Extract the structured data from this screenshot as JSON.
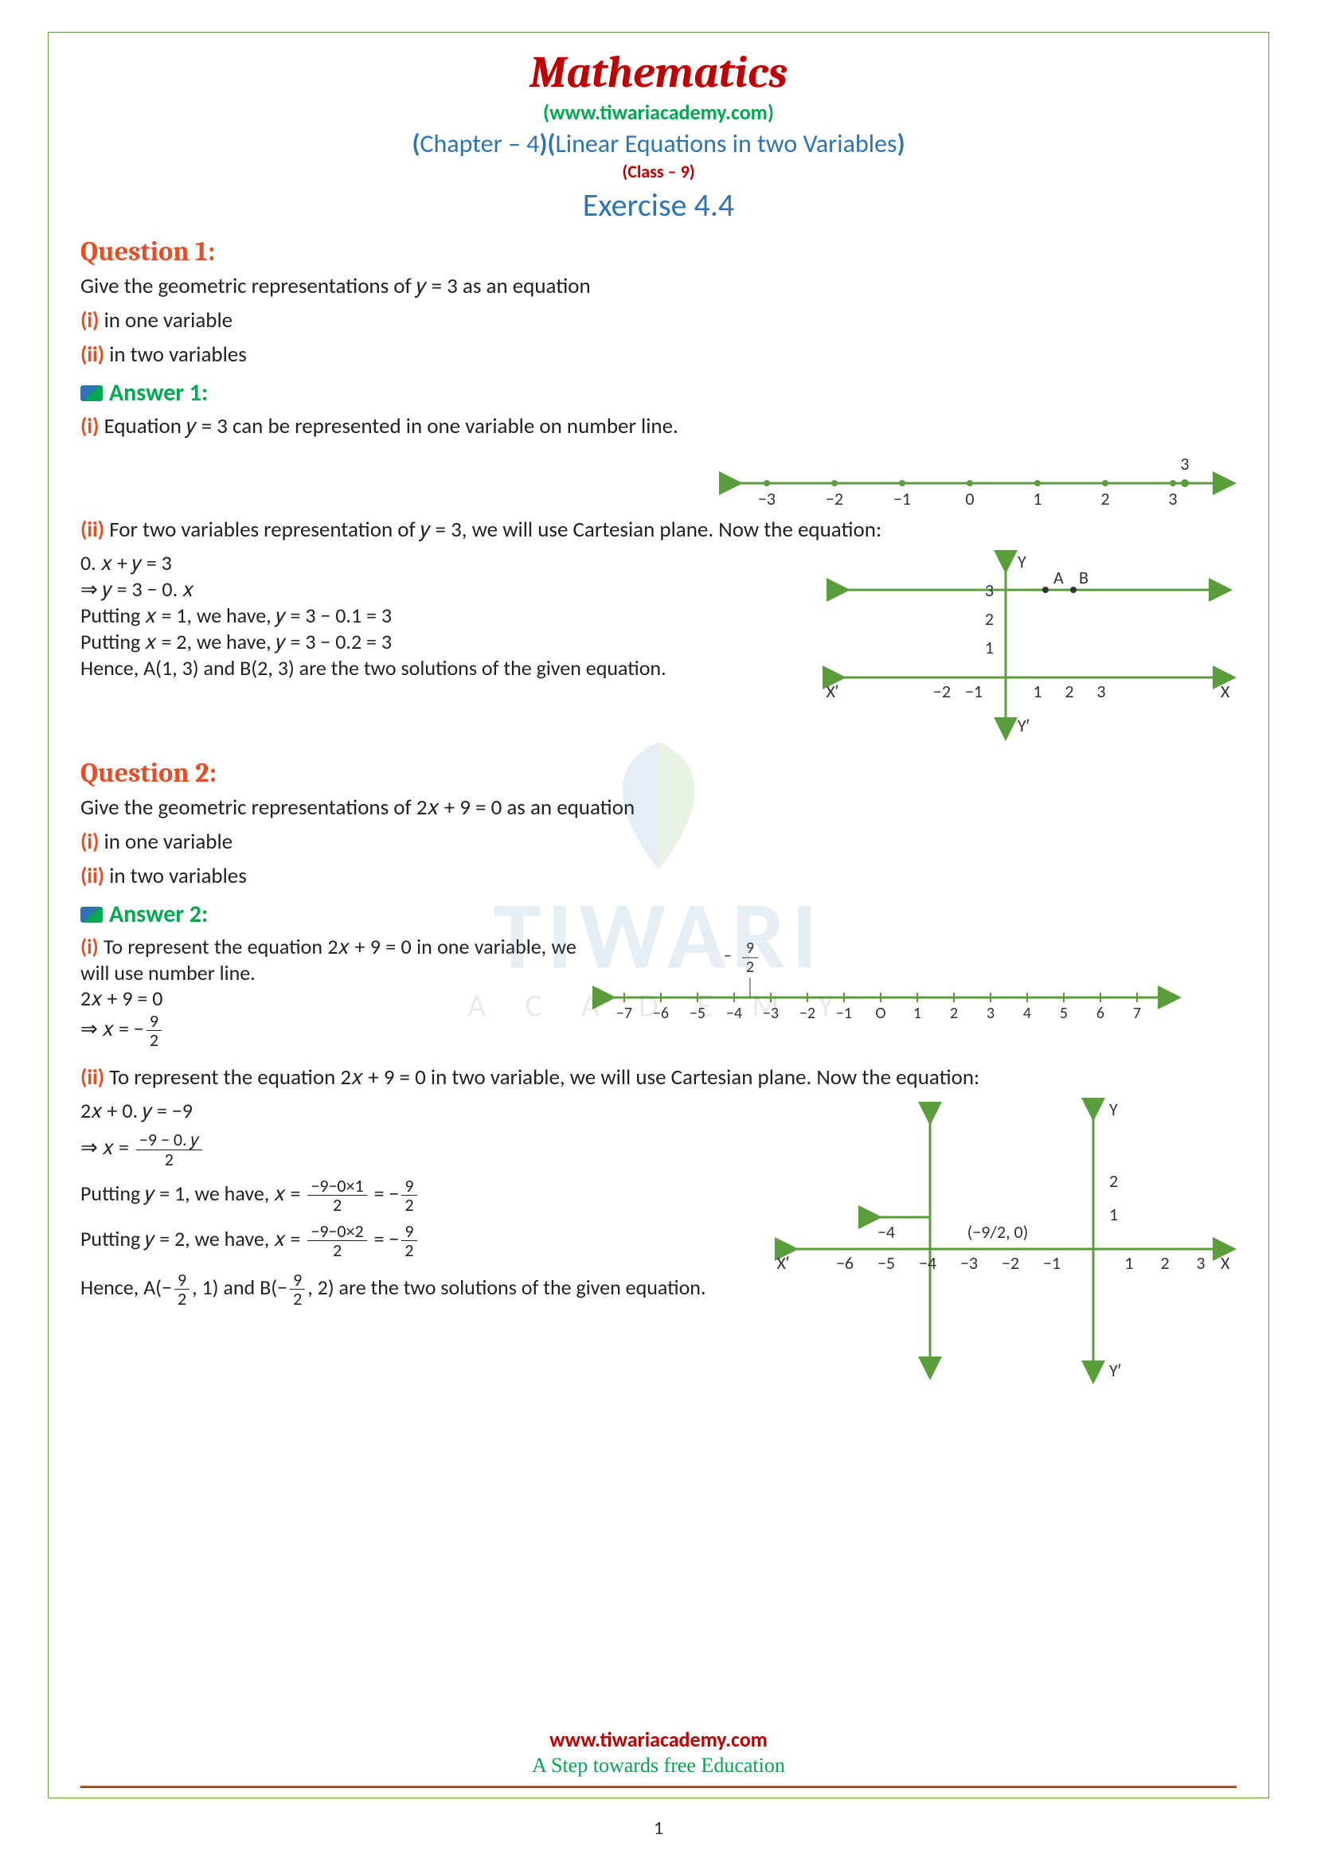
{
  "header": {
    "title": "Mathematics",
    "url_prefix": "(",
    "url": "www.tiwariacademy.com",
    "url_suffix": ")",
    "chapter_open": "(",
    "chapter_a": "Chapter – 4",
    "chapter_mid": ")(",
    "chapter_b": "Linear Equations in two Variables",
    "chapter_close": ")",
    "class_line": "(Class – 9)",
    "exercise": "Exercise 4.4"
  },
  "q1": {
    "label": "Question 1:",
    "prompt": "Give the geometric representations of 𝑦 = 3 as an equation",
    "pi": "(i)",
    "pi_text": " in one variable",
    "pii": "(ii)",
    "pii_text": " in two variables",
    "answer_label": "Answer 1:",
    "ai": "(i)",
    "ai_text": "  Equation 𝑦 = 3 can be represented in one variable on number line.",
    "aii": "(ii)",
    "aii_text": "   For two variables representation of 𝑦 = 3, we will use Cartesian plane. Now the equation:",
    "eq1": "0. 𝑥 + 𝑦 = 3",
    "eq2": "⇒ 𝑦 = 3 − 0. 𝑥",
    "put1": "Putting 𝑥 = 1, we have, 𝑦 = 3 − 0.1 = 3",
    "put2": "Putting 𝑥 = 2, we have, 𝑦 = 3 − 0.2 = 3",
    "concl": "Hence, A(1, 3) and B(2, 3) are the two solutions of the given equation.",
    "numberline": {
      "ticks": [
        "−3",
        "−2",
        "−1",
        "0",
        "1",
        "2",
        "3"
      ],
      "mark_label": "3",
      "color": "#5a9e3c"
    },
    "cartesian": {
      "x_ticks_neg": [
        "−2",
        "−1"
      ],
      "x_ticks_pos": [
        "1",
        "2",
        "3"
      ],
      "y_ticks": [
        "1",
        "2",
        "3"
      ],
      "labels": {
        "X": "X",
        "Xp": "X′",
        "Y": "Y",
        "Yp": "Y′",
        "A": "A",
        "B": "B"
      },
      "color": "#5a9e3c"
    }
  },
  "q2": {
    "label": "Question 2:",
    "prompt": "Give the geometric representations of 2𝑥 + 9 = 0 as an equation",
    "pi": "(i)",
    "pi_text": " in one variable",
    "pii": "(ii)",
    "pii_text": " in two variables",
    "answer_label": "Answer 2:",
    "ai": "(i)",
    "ai_text": "  To represent the equation 2𝑥 + 9 = 0 in one variable, we will use number line.",
    "eq1": "2𝑥 + 9 = 0",
    "eq2_lhs": "⇒ 𝑥 = −",
    "eq2_num": "9",
    "eq2_den": "2",
    "aii": "(ii)",
    "aii_text": "   To represent the equation 2𝑥 + 9 = 0 in two variable, we will use Cartesian plane. Now the equation:",
    "eq3": "2𝑥 + 0. 𝑦 = −9",
    "eq4_lhs": "⇒ 𝑥 = ",
    "eq4_num": "−9 − 0. 𝑦",
    "eq4_den": "2",
    "put1_a": "Putting  𝑦 = 1, we have, 𝑥 = ",
    "put1_num": "−9−0×1",
    "put1_den": "2",
    "put1_mid": " = −",
    "put1_rnum": "9",
    "put1_rden": "2",
    "put2_a": "Putting 𝑦 = 2, we have, 𝑥 = ",
    "put2_num": "−9−0×2",
    "put2_den": "2",
    "put2_mid": " = −",
    "put2_rnum": "9",
    "put2_rden": "2",
    "concl_a": "Hence, A(−",
    "concl_f1n": "9",
    "concl_f1d": "2",
    "concl_b": ", 1) and B(−",
    "concl_f2n": "9",
    "concl_f2d": "2",
    "concl_c": ", 2) are the two solutions of the given equation.",
    "numberline": {
      "ticks": [
        "−7",
        "−6",
        "−5",
        "−4",
        "−3",
        "−2",
        "−1",
        "O",
        "1",
        "2",
        "3",
        "4",
        "5",
        "6",
        "7"
      ],
      "mark_num": "9",
      "mark_den": "2",
      "mark_neg": "−",
      "color": "#5a9e3c"
    },
    "cartesian": {
      "x_ticks_neg": [
        "−6",
        "−5",
        "−4",
        "−3",
        "−2",
        "−1"
      ],
      "x_ticks_pos": [
        "1",
        "2",
        "3"
      ],
      "y_ticks": [
        "1",
        "2"
      ],
      "point_label": "(−9/2, 0)",
      "stub": "−4",
      "labels": {
        "X": "X",
        "Xp": "X′",
        "Y": "Y",
        "Yp": "Y′"
      },
      "color": "#5a9e3c"
    }
  },
  "footer": {
    "url": "www.tiwariacademy.com",
    "tag": "A Step towards free Education",
    "page": "1"
  },
  "watermark": {
    "t1": "TIWARI",
    "t2": "A C A D E M Y"
  }
}
